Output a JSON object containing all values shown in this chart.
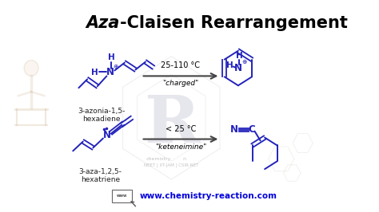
{
  "title_italic": "Aza",
  "title_rest": "-Claisen Rearrangement",
  "bg_color": "#ffffff",
  "blue": "#2222bb",
  "arrow_color": "#444444",
  "watermark_hex_color": "#c0c0cc",
  "watermark_R_color": "#9090b0",
  "watermark_text_color": "#aaaaaa",
  "website_color": "#0000dd",
  "website_text": "www.chemistry-reaction.com",
  "label1a": "3-azonia-1,5-",
  "label1b": "hexadiene",
  "label2a": "3-aza-1,2,5-",
  "label2b": "hexatriene",
  "arrow1_top": "25-110 °C",
  "arrow1_label": "\"charged\"",
  "arrow2_top": "< 25 °C",
  "arrow2_label": "\"keteneimine\""
}
